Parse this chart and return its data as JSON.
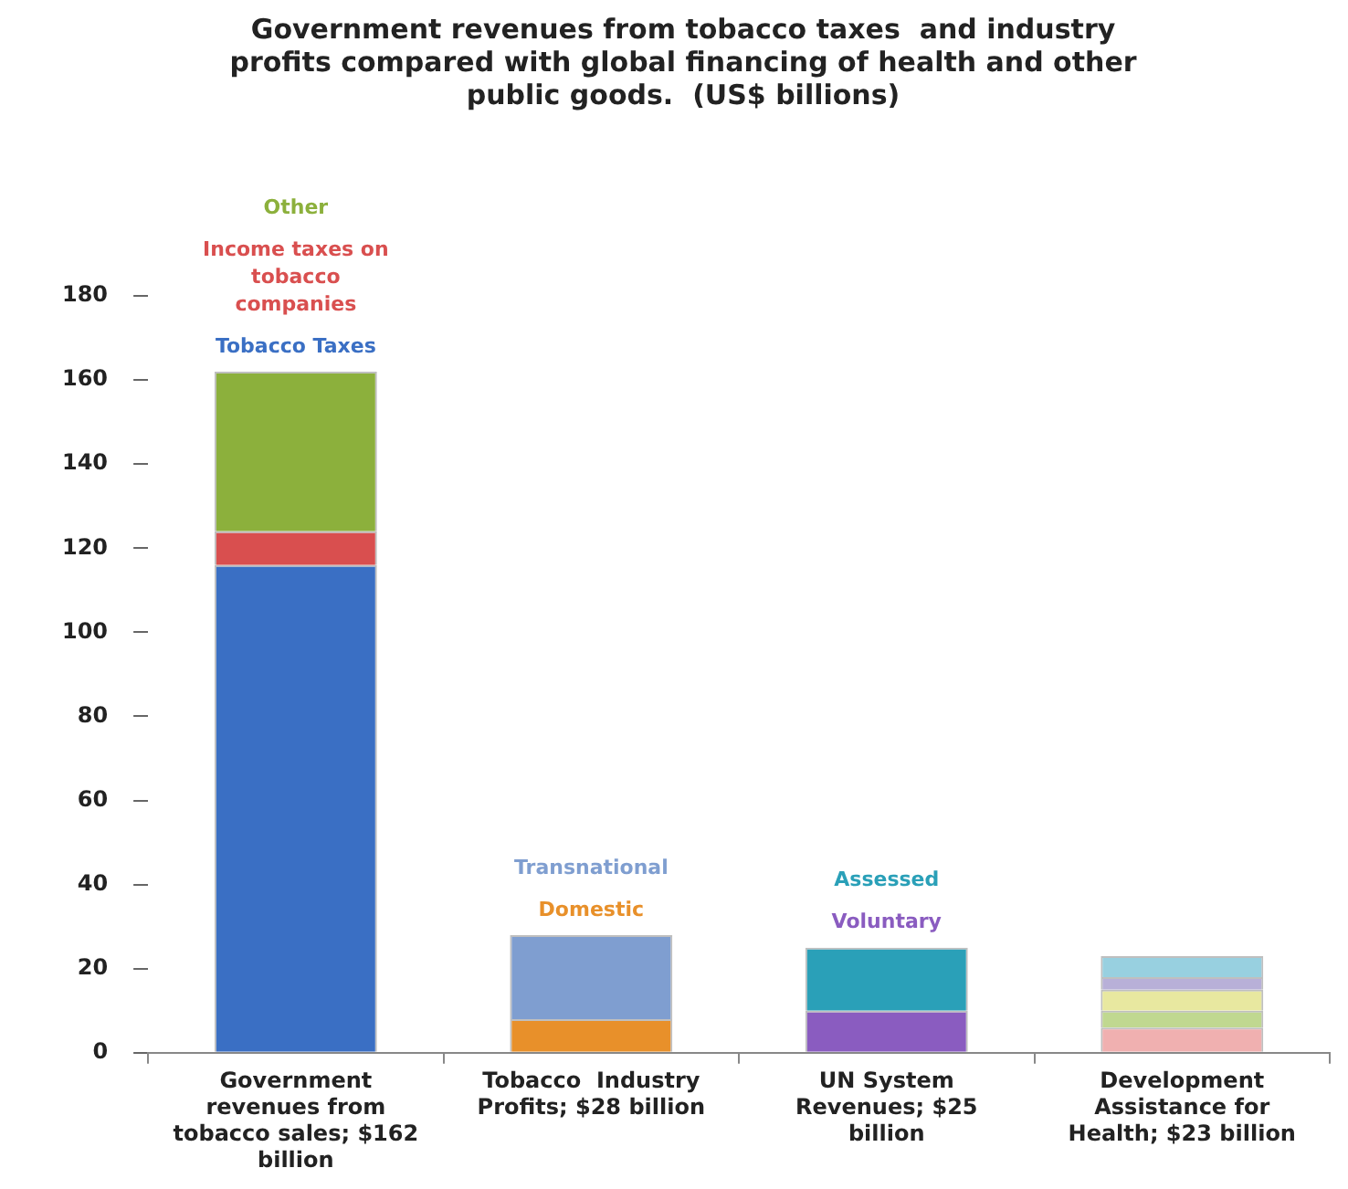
{
  "chart_data": {
    "type": "bar",
    "stacked": true,
    "title": "Government revenues from tobacco taxes  and industry profits compared with global financing of health and other public goods.  (US$ billions)",
    "categories": [
      "Government revenues from tobacco sales; $162 billion",
      "Tobacco  Industry Profits; $28 billion",
      "UN System Revenues; $25 billion",
      "Development Assistance for Health; $23 billion"
    ],
    "series": [
      {
        "name": "Tobacco Taxes",
        "color": "#3a6fc4",
        "values": [
          116,
          null,
          null,
          null
        ]
      },
      {
        "name": "Income taxes on tobacco companies",
        "color": "#d94f4f",
        "values": [
          8,
          null,
          null,
          null
        ]
      },
      {
        "name": "Other",
        "color": "#8cb03c",
        "values": [
          38,
          null,
          null,
          null
        ]
      },
      {
        "name": "Domestic",
        "color": "#e8902a",
        "values": [
          null,
          8,
          null,
          null
        ]
      },
      {
        "name": "Transnational",
        "color": "#7f9ed0",
        "values": [
          null,
          20,
          null,
          null
        ]
      },
      {
        "name": "Voluntary",
        "color": "#8a5cc0",
        "values": [
          null,
          null,
          10,
          null
        ]
      },
      {
        "name": "Assessed",
        "color": "#2aa0b8",
        "values": [
          null,
          null,
          15,
          null
        ]
      },
      {
        "color": "#f0b0b0",
        "values": [
          null,
          null,
          null,
          6
        ]
      },
      {
        "color": "#c0d890",
        "values": [
          null,
          null,
          null,
          4
        ]
      },
      {
        "color": "#e8e8a0",
        "values": [
          null,
          null,
          null,
          5
        ]
      },
      {
        "color": "#b8b0d8",
        "values": [
          null,
          null,
          null,
          3
        ]
      },
      {
        "color": "#98d0e0",
        "values": [
          null,
          null,
          null,
          5
        ]
      }
    ],
    "ylim": [
      0,
      180
    ],
    "yticks": [
      0,
      20,
      40,
      60,
      80,
      100,
      120,
      140,
      160,
      180
    ],
    "grid": false,
    "legend": false
  }
}
